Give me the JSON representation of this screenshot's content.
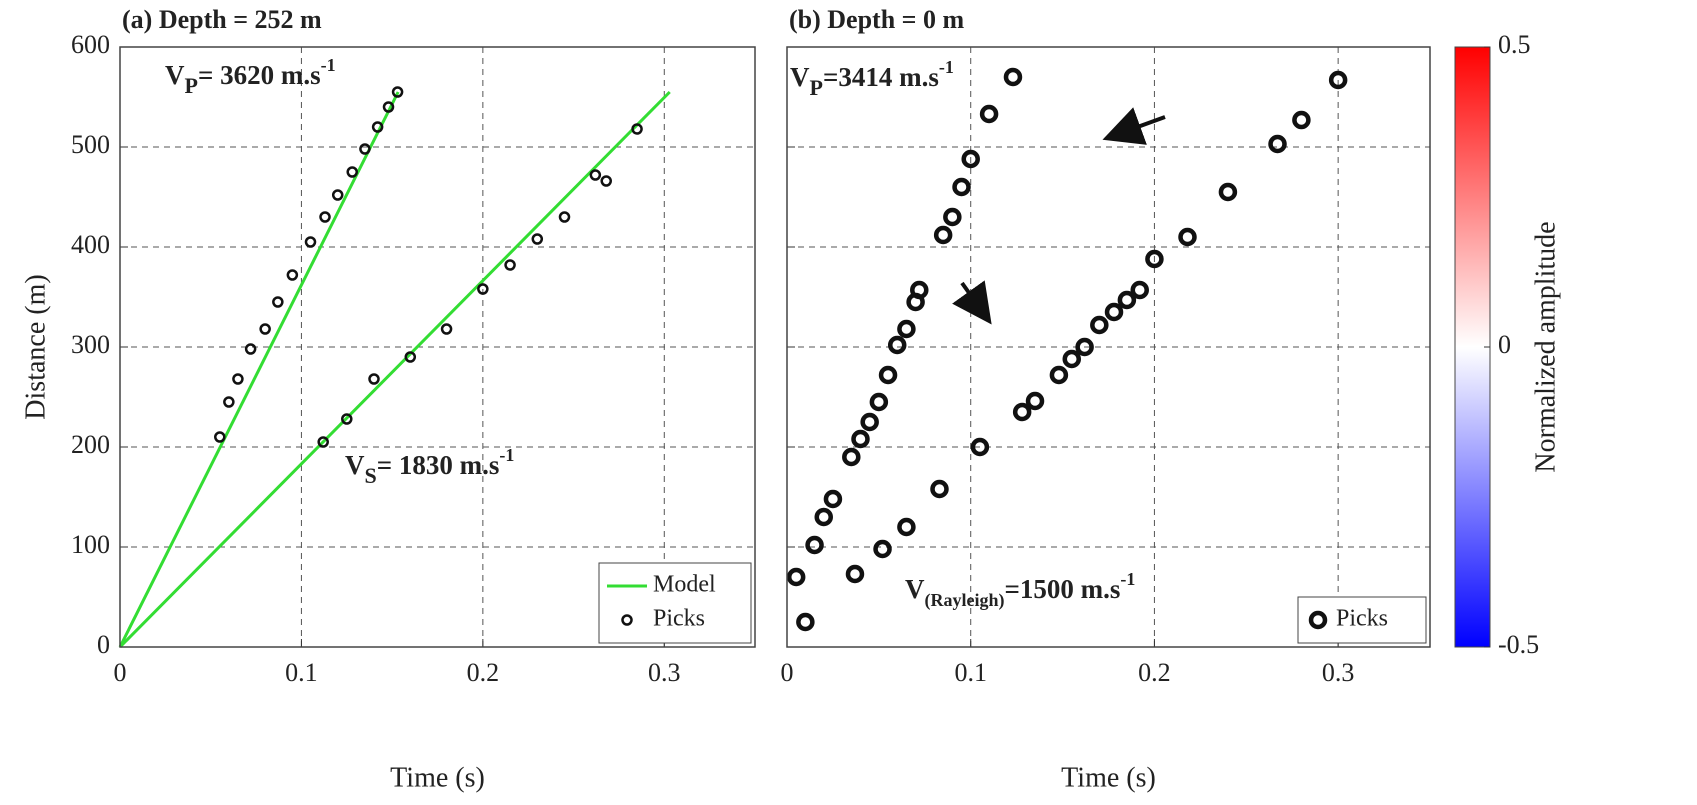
{
  "chart_data": [
    {
      "type": "scatter",
      "title": "(a) Depth = 252 m",
      "x_label": "Time (s)",
      "y_label": "Distance (m)",
      "xlim": [
        0,
        0.35
      ],
      "ylim": [
        0,
        600
      ],
      "xticks": [
        0,
        0.1,
        0.2,
        0.3
      ],
      "yticks": [
        0,
        100,
        200,
        300,
        400,
        500,
        600
      ],
      "grid": true,
      "legend": "lower right",
      "series": [
        {
          "name": "Model",
          "color": "#33dd33",
          "style": "line",
          "x": [
            0,
            0.1533
          ],
          "y": [
            0,
            555
          ]
        },
        {
          "name": null,
          "color": "#33dd33",
          "style": "line",
          "x": [
            0,
            0.303
          ],
          "y": [
            0,
            555
          ]
        },
        {
          "name": "Picks",
          "color": "#111111",
          "style": "marker",
          "x": [
            0.055,
            0.06,
            0.065,
            0.072,
            0.08,
            0.087,
            0.095,
            0.105,
            0.113,
            0.12,
            0.128,
            0.135,
            0.142,
            0.148,
            0.153,
            0.112,
            0.125,
            0.14,
            0.16,
            0.18,
            0.2,
            0.215,
            0.23,
            0.245,
            0.262,
            0.268,
            0.285
          ],
          "y": [
            210,
            245,
            268,
            298,
            318,
            345,
            372,
            405,
            430,
            452,
            475,
            498,
            520,
            540,
            555,
            205,
            228,
            268,
            290,
            318,
            358,
            382,
            408,
            430,
            472,
            466,
            518
          ]
        }
      ],
      "annotations": [
        {
          "text": "V",
          "sub": "P",
          "rest": "= 3620 m.s",
          "sup": "-1"
        },
        {
          "text": "V",
          "sub": "S",
          "rest": "= 1830 m.s",
          "sup": "-1"
        }
      ]
    },
    {
      "type": "scatter",
      "title": "(b) Depth = 0 m",
      "x_label": "Time (s)",
      "xlim": [
        0,
        0.35
      ],
      "ylim": [
        0,
        600
      ],
      "xticks": [
        0,
        0.1,
        0.2,
        0.3
      ],
      "yticks": [
        100,
        200,
        300,
        400,
        500,
        600
      ],
      "grid": true,
      "legend": "lower right",
      "series": [
        {
          "name": "Picks",
          "color": "#111111",
          "style": "marker",
          "x": [
            0.01,
            0.005,
            0.015,
            0.02,
            0.025,
            0.035,
            0.04,
            0.045,
            0.05,
            0.055,
            0.06,
            0.065,
            0.07,
            0.072,
            0.085,
            0.09,
            0.095,
            0.1,
            0.11,
            0.123,
            0.037,
            0.052,
            0.065,
            0.083,
            0.105,
            0.128,
            0.135,
            0.148,
            0.155,
            0.162,
            0.17,
            0.178,
            0.185,
            0.192,
            0.2,
            0.218,
            0.24,
            0.267,
            0.28,
            0.3
          ],
          "y": [
            25,
            70,
            102,
            130,
            148,
            190,
            208,
            225,
            245,
            272,
            302,
            318,
            345,
            357,
            412,
            430,
            460,
            488,
            533,
            570,
            73,
            98,
            120,
            158,
            200,
            235,
            246,
            272,
            288,
            300,
            322,
            335,
            347,
            357,
            388,
            410,
            455,
            503,
            527,
            567
          ]
        }
      ],
      "annotations": [
        {
          "text": "V",
          "sub": "P",
          "rest": "=3414 m.s",
          "sup": "-1"
        },
        {
          "text": "V",
          "sub": "(Rayleigh)",
          "rest": "=1500 m.s",
          "sup": "-1"
        }
      ],
      "colorbar": {
        "label": "Normalized amplitude",
        "lim": [
          -0.5,
          0.5
        ],
        "ticks": [
          -0.5,
          0,
          0.5
        ]
      }
    }
  ]
}
